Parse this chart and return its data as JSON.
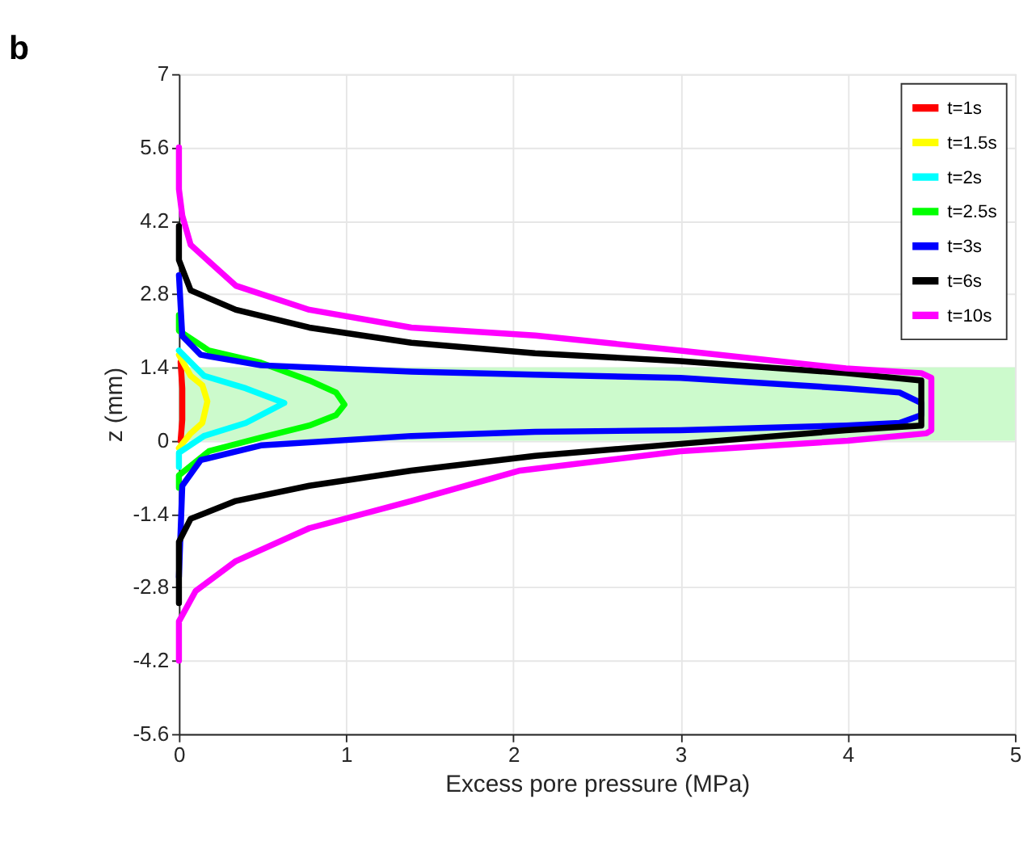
{
  "chart_data": {
    "type": "line",
    "title": "b",
    "xlabel": "Excess pore pressure (MPa)",
    "ylabel": "z (mm)",
    "xlim": [
      0,
      5
    ],
    "xticks": [
      0,
      1,
      2,
      3,
      4,
      5
    ],
    "ylim": [
      -5.6,
      7
    ],
    "yticks": [
      -5.6,
      -4.2,
      -2.8,
      -1.4,
      0,
      1.4,
      2.8,
      4.2,
      5.6,
      7
    ],
    "grid": true,
    "legend": "top right",
    "line_style": "solid",
    "marker": "none",
    "bands": [
      {
        "axis": "y",
        "from": 0,
        "to": 1.4,
        "color": "#ccfacc"
      }
    ],
    "series": [
      {
        "name": "t=1s",
        "color": "#ff0000",
        "x": [
          0.01,
          0.02,
          0.02,
          0.01
        ],
        "values": [
          1.5,
          1.0,
          0.4,
          0.0
        ]
      },
      {
        "name": "t=1.5s",
        "color": "#ffff00",
        "x": [
          0.0,
          0.07,
          0.14,
          0.17,
          0.14,
          0.07,
          0.0
        ],
        "values": [
          1.64,
          1.24,
          1.06,
          0.75,
          0.34,
          0.14,
          -0.14
        ]
      },
      {
        "name": "t=2s",
        "color": "#00ffff",
        "x": [
          0.0,
          0.15,
          0.4,
          0.63,
          0.4,
          0.15,
          0.0,
          0.0
        ],
        "values": [
          1.72,
          1.24,
          1.0,
          0.72,
          0.34,
          0.09,
          -0.23,
          -0.5
        ]
      },
      {
        "name": "t=2.5s",
        "color": "#00ff00",
        "x": [
          0.0,
          0.0,
          0.18,
          0.49,
          0.78,
          0.94,
          0.99,
          0.94,
          0.78,
          0.49,
          0.18,
          0.0,
          0.0
        ],
        "values": [
          2.4,
          2.1,
          1.72,
          1.49,
          1.15,
          0.92,
          0.69,
          0.49,
          0.29,
          0.06,
          -0.2,
          -0.66,
          -0.9
        ]
      },
      {
        "name": "t=3s",
        "color": "#0000ff",
        "x": [
          0.0,
          0.02,
          0.13,
          0.49,
          1.39,
          2.13,
          3.0,
          3.99,
          4.31,
          4.44,
          4.44,
          4.31,
          3.99,
          3.0,
          2.13,
          1.39,
          0.49,
          0.13,
          0.02,
          0.0
        ],
        "values": [
          3.16,
          2.0,
          1.64,
          1.44,
          1.32,
          1.26,
          1.2,
          1.0,
          0.92,
          0.72,
          0.49,
          0.34,
          0.29,
          0.2,
          0.17,
          0.09,
          -0.09,
          -0.37,
          -0.86,
          -2.6
        ]
      },
      {
        "name": "t=6s",
        "color": "#000000",
        "x": [
          0.0,
          0.0,
          0.07,
          0.34,
          0.78,
          1.39,
          2.13,
          3.0,
          3.99,
          4.44,
          4.44,
          3.99,
          3.0,
          2.13,
          1.39,
          0.78,
          0.34,
          0.07,
          0.0,
          0.0
        ],
        "values": [
          4.1,
          3.45,
          2.87,
          2.5,
          2.16,
          1.87,
          1.67,
          1.52,
          1.29,
          1.15,
          0.29,
          0.2,
          -0.06,
          -0.29,
          -0.57,
          -0.86,
          -1.15,
          -1.49,
          -1.93,
          -3.1
        ]
      },
      {
        "name": "t=10s",
        "color": "#ff00ff",
        "x": [
          0.0,
          0.0,
          0.02,
          0.07,
          0.34,
          0.78,
          1.39,
          2.13,
          3.0,
          3.99,
          4.44,
          4.5,
          4.5,
          4.47,
          4.0,
          3.0,
          2.04,
          1.39,
          0.78,
          0.34,
          0.1,
          0.0,
          0.0
        ],
        "values": [
          5.6,
          4.8,
          4.3,
          3.74,
          2.96,
          2.5,
          2.16,
          2.01,
          1.72,
          1.38,
          1.29,
          1.2,
          0.2,
          0.14,
          0.0,
          -0.2,
          -0.57,
          -1.15,
          -1.67,
          -2.3,
          -2.87,
          -3.45,
          -4.2
        ]
      }
    ]
  }
}
